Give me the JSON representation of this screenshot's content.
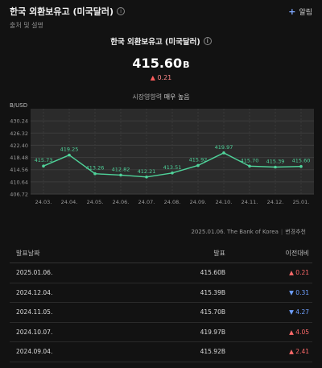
{
  "header": {
    "title": "한국 외환보유고 (미국달러)",
    "subtitle": "출처 및 설명",
    "alert_label": "알림"
  },
  "summary": {
    "title": "한국 외환보유고 (미국달러)",
    "value": "415.60",
    "unit": "B",
    "change_arrow": "▲",
    "change": "0.21",
    "status_prefix": "시장영향력",
    "status_emph": "매우 높음"
  },
  "chart_data": {
    "type": "line",
    "ylabel": "B/USD",
    "y_ticks": [
      406.72,
      410.64,
      414.56,
      418.48,
      422.4,
      426.32,
      430.24
    ],
    "y_ticks_text": [
      "406.72",
      "410.64",
      "414.56",
      "418.48",
      "422.40",
      "426.32",
      "430.24"
    ],
    "ylim": [
      406.72,
      434.16
    ],
    "categories": [
      "24.03.",
      "24.04.",
      "24.05.",
      "24.06.",
      "24.07.",
      "24.08.",
      "24.09.",
      "24.10.",
      "24.11.",
      "24.12.",
      "25.01."
    ],
    "values": [
      415.73,
      419.25,
      413.26,
      412.82,
      412.21,
      413.51,
      415.92,
      419.97,
      415.7,
      415.39,
      415.6
    ],
    "labels": [
      "415.73",
      "419.25",
      "413.26",
      "412.82",
      "412.21",
      "413.51",
      "415.92",
      "419.97",
      "415.70",
      "415.39",
      "415.60"
    ],
    "grid": true,
    "line_color": "#4fd39a"
  },
  "source": {
    "text": "2025.01.06. The Bank of Korea",
    "sep": "|",
    "link": "변경추천"
  },
  "table": {
    "headers": [
      "발표날짜",
      "발표",
      "이전대비"
    ],
    "rows": [
      {
        "date": "2025.01.06.",
        "value": "415.60B",
        "arrow": "▲",
        "change": "0.21",
        "dir": "up"
      },
      {
        "date": "2024.12.04.",
        "value": "415.39B",
        "arrow": "▼",
        "change": "0.31",
        "dir": "down"
      },
      {
        "date": "2024.11.05.",
        "value": "415.70B",
        "arrow": "▼",
        "change": "4.27",
        "dir": "down"
      },
      {
        "date": "2024.10.07.",
        "value": "419.97B",
        "arrow": "▲",
        "change": "4.05",
        "dir": "up"
      },
      {
        "date": "2024.09.04.",
        "value": "415.92B",
        "arrow": "▲",
        "change": "2.41",
        "dir": "up"
      }
    ]
  },
  "colors": {
    "background": "#121212",
    "accent_green": "#4fd39a",
    "up_red": "#ff6a6a",
    "down_blue": "#6fa0ff"
  }
}
